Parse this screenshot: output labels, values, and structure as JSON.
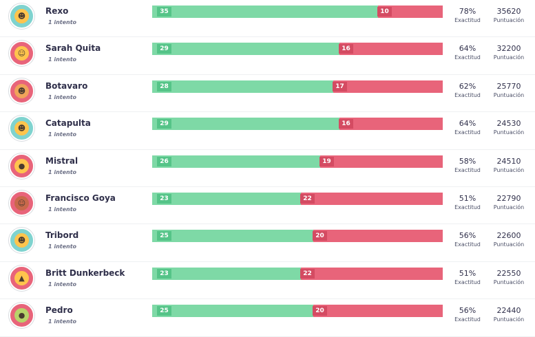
{
  "colors": {
    "correct": "#7ed9a6",
    "incorrect": "#e8647a",
    "avatar_teal": "#7fd3cf",
    "avatar_red": "#e8647a",
    "avatar_yellow": "#ffc44d"
  },
  "players": [
    {
      "name": "Rexo",
      "attempts": "1 intento",
      "correct": 35,
      "incorrect": 10,
      "accuracy": "78%",
      "accuracy_label": "Exactitud",
      "score": "35620",
      "score_label": "Puntuación",
      "avatar": "rainbow-monster-icon",
      "ring": "#7fd3cf",
      "face": "#ffc44d",
      "glyph": "☻"
    },
    {
      "name": "Sarah Quita",
      "attempts": "1 intento",
      "correct": 29,
      "incorrect": 16,
      "accuracy": "64%",
      "accuracy_label": "Exactitud",
      "score": "32200",
      "score_label": "Puntuación",
      "avatar": "burger-monster-icon",
      "ring": "#e8647a",
      "face": "#ffc44d",
      "glyph": "☺"
    },
    {
      "name": "Botavaro",
      "attempts": "1 intento",
      "correct": 28,
      "incorrect": 17,
      "accuracy": "62%",
      "accuracy_label": "Exactitud",
      "score": "25770",
      "score_label": "Puntuación",
      "avatar": "bear-monster-icon",
      "ring": "#e8647a",
      "face": "#f0a35a",
      "glyph": "☻"
    },
    {
      "name": "Catapulta",
      "attempts": "1 intento",
      "correct": 29,
      "incorrect": 16,
      "accuracy": "64%",
      "accuracy_label": "Exactitud",
      "score": "24530",
      "score_label": "Puntuación",
      "avatar": "rainbow-monster-icon",
      "ring": "#7fd3cf",
      "face": "#ffc44d",
      "glyph": "☻"
    },
    {
      "name": "Mistral",
      "attempts": "1 intento",
      "correct": 26,
      "incorrect": 19,
      "accuracy": "58%",
      "accuracy_label": "Exactitud",
      "score": "24510",
      "score_label": "Puntuación",
      "avatar": "icecream-monster-icon",
      "ring": "#e8647a",
      "face": "#ffc44d",
      "glyph": "●"
    },
    {
      "name": "Francisco Goya",
      "attempts": "1 intento",
      "correct": 23,
      "incorrect": 22,
      "accuracy": "51%",
      "accuracy_label": "Exactitud",
      "score": "22790",
      "score_label": "Puntuación",
      "avatar": "burger-monster-icon",
      "ring": "#e8647a",
      "face": "#c9694b",
      "glyph": "☺"
    },
    {
      "name": "Tribord",
      "attempts": "1 intento",
      "correct": 25,
      "incorrect": 20,
      "accuracy": "56%",
      "accuracy_label": "Exactitud",
      "score": "22600",
      "score_label": "Puntuación",
      "avatar": "rainbow-monster-icon",
      "ring": "#7fd3cf",
      "face": "#ffc44d",
      "glyph": "☻"
    },
    {
      "name": "Britt Dunkerbeck",
      "attempts": "1 intento",
      "correct": 23,
      "incorrect": 22,
      "accuracy": "51%",
      "accuracy_label": "Exactitud",
      "score": "22550",
      "score_label": "Puntuación",
      "avatar": "pizza-monster-icon",
      "ring": "#e8647a",
      "face": "#ffc44d",
      "glyph": "▲"
    },
    {
      "name": "Pedro",
      "attempts": "1 intento",
      "correct": 25,
      "incorrect": 20,
      "accuracy": "56%",
      "accuracy_label": "Exactitud",
      "score": "22440",
      "score_label": "Puntuación",
      "avatar": "avocado-monster-icon",
      "ring": "#e8647a",
      "face": "#b8d36a",
      "glyph": "●"
    }
  ]
}
